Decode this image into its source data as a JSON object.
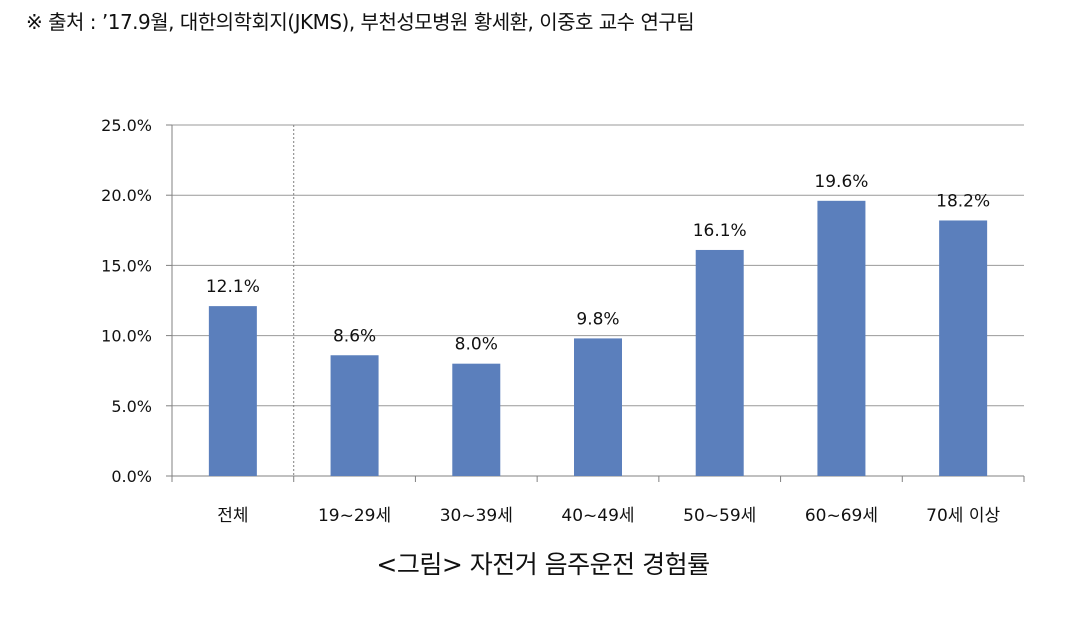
{
  "source_note": "※ 출처 : ’17.9월, 대한의학회지(JKMS), 부천성모병원 황세환, 이중호 교수 연구팀",
  "caption": "<그림> 자전거 음주운전 경험률",
  "chart_data": {
    "type": "bar",
    "categories": [
      "전체",
      "19~29세",
      "30~39세",
      "40~49세",
      "50~59세",
      "60~69세",
      "70세 이상"
    ],
    "values": [
      12.1,
      8.6,
      8.0,
      9.8,
      16.1,
      19.6,
      18.2
    ],
    "value_labels": [
      "12.1%",
      "8.6%",
      "8.0%",
      "9.8%",
      "16.1%",
      "19.6%",
      "18.2%"
    ],
    "y_ticks": [
      "0.0%",
      "5.0%",
      "10.0%",
      "15.0%",
      "20.0%",
      "25.0%"
    ],
    "ylim": [
      0,
      25
    ],
    "grid": true,
    "divider_after_category": 0,
    "bar_color": "#5b7fbc",
    "grid_color": "#999999",
    "axis_color": "#808080"
  }
}
